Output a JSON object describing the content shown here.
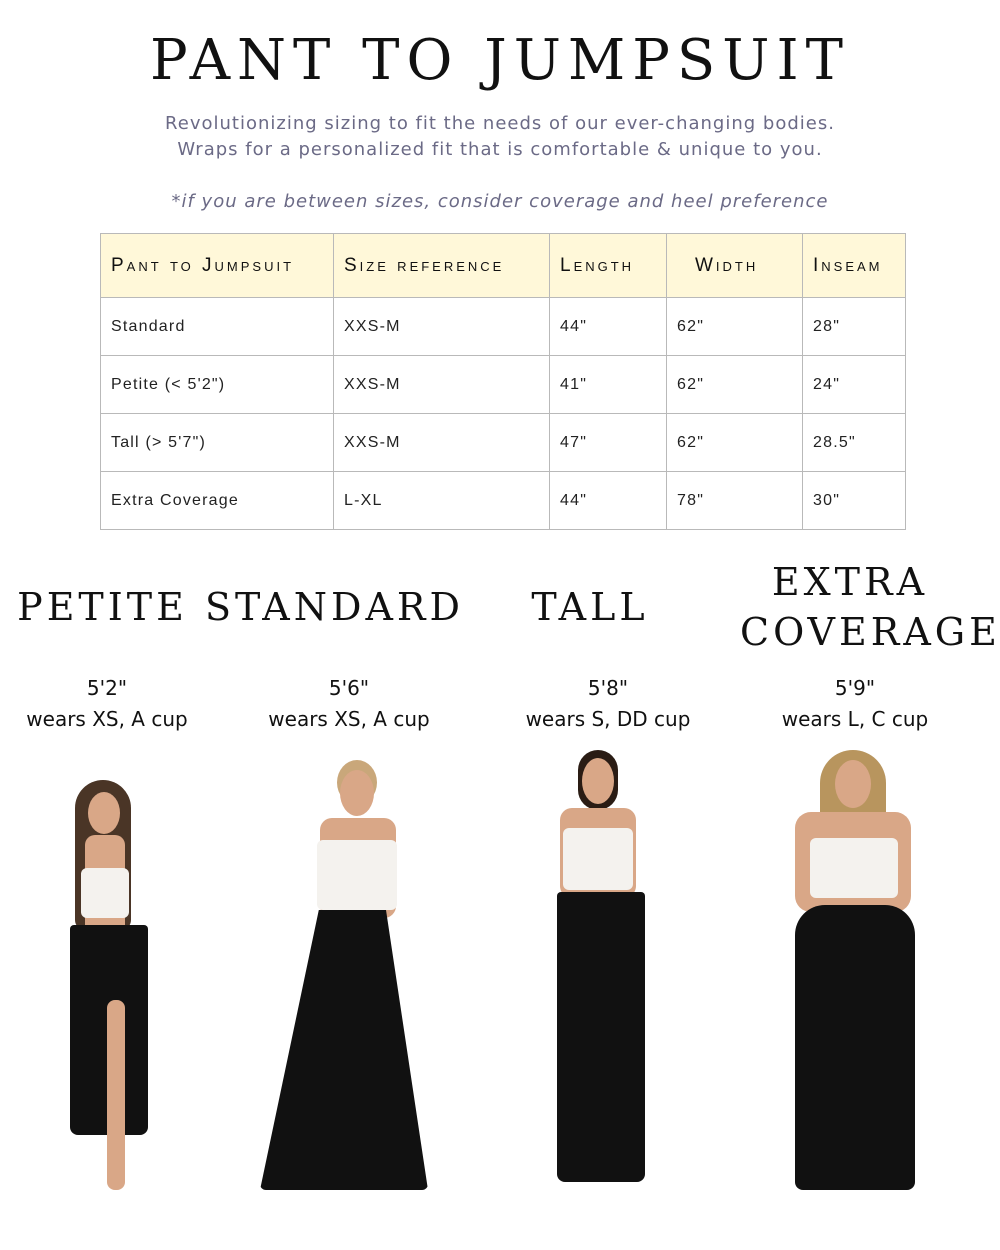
{
  "header": {
    "title": "PANT TO JUMPSUIT",
    "subtitle_line1": "Revolutionizing sizing to fit the needs of our ever-changing bodies.",
    "subtitle_line2": "Wraps for a personalized fit that is comfortable & unique to you.",
    "note": "*if you are between sizes, consider coverage and heel preference"
  },
  "table": {
    "columns": [
      "Pant to Jumpsuit",
      "Size reference",
      "Length",
      "Width",
      "Inseam"
    ],
    "rows": [
      [
        "Standard",
        "XXS-M",
        "44\"",
        "62\"",
        "28\""
      ],
      [
        "Petite (< 5'2\")",
        "XXS-M",
        "41\"",
        "62\"",
        "24\""
      ],
      [
        "Tall (> 5'7\")",
        "XXS-M",
        "47\"",
        "62\"",
        "28.5\""
      ],
      [
        "Extra Coverage",
        "L-XL",
        "44\"",
        "78\"",
        "30\""
      ]
    ],
    "header_color": "#fff8d9"
  },
  "models": [
    {
      "name": "PETITE",
      "height": "5'2\"",
      "wears": "wears XS, A cup"
    },
    {
      "name": "STANDARD",
      "height": "5'6\"",
      "wears": "wears XS, A cup"
    },
    {
      "name": "TALL",
      "height": "5'8\"",
      "wears": "wears S, DD cup"
    },
    {
      "name": "EXTRA COVERAGE",
      "height": "5'9\"",
      "wears": "wears L, C cup"
    }
  ]
}
